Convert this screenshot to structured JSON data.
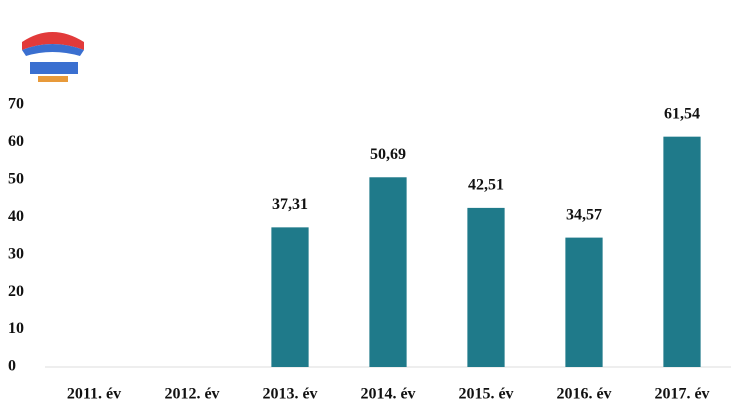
{
  "chart_data": {
    "type": "bar",
    "categories": [
      "2011. év",
      "2012. év",
      "2013. év",
      "2014. év",
      "2015. év",
      "2016. év",
      "2017. év"
    ],
    "values": [
      null,
      null,
      37.31,
      50.69,
      42.51,
      34.57,
      61.54
    ],
    "value_labels": [
      null,
      null,
      "37,31",
      "50,69",
      "42,51",
      "34,57",
      "61,54"
    ],
    "color": "#1f7a8a",
    "ylim": [
      0,
      70
    ],
    "yticks": [
      0,
      10,
      20,
      30,
      40,
      50,
      60,
      70
    ],
    "grid": false
  }
}
